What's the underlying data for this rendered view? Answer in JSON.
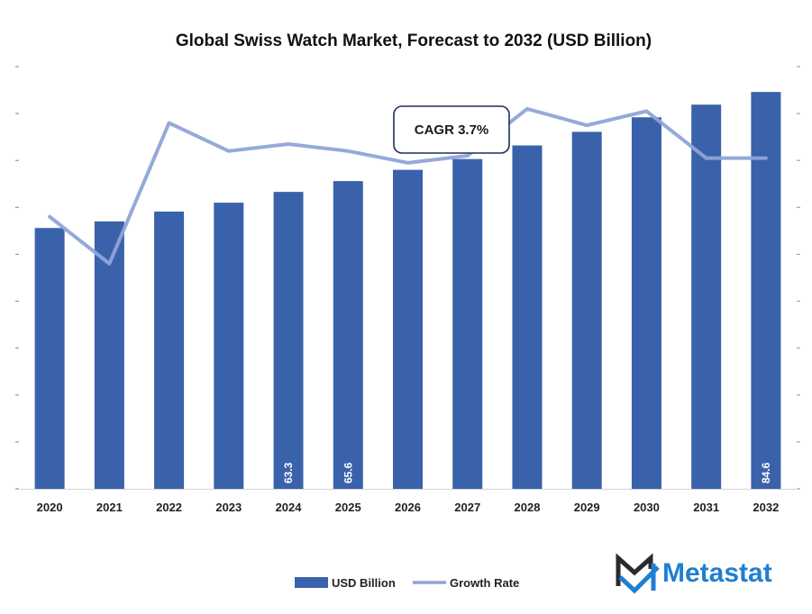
{
  "chart_data": {
    "type": "bar",
    "title": "Global Swiss Watch Market, Forecast to 2032 (USD Billion)",
    "xlabel": "",
    "ylabel": "",
    "categories": [
      "2020",
      "2021",
      "2022",
      "2023",
      "2024",
      "2025",
      "2026",
      "2027",
      "2028",
      "2029",
      "2030",
      "2031",
      "2032"
    ],
    "ylim": [
      0,
      90
    ],
    "yticks_step": 10,
    "ytick_labels_visible": false,
    "grid": false,
    "series": [
      {
        "name": "USD Billion",
        "type": "bar",
        "axis": "left",
        "color": "#3a62ab",
        "values": [
          55.6,
          57.0,
          59.1,
          61.0,
          63.3,
          65.6,
          68.0,
          70.3,
          73.2,
          76.1,
          79.2,
          81.9,
          84.6
        ],
        "data_labels": {
          "4": "63.3",
          "5": "65.6",
          "12": "84.6"
        }
      },
      {
        "name": "Growth Rate",
        "type": "line",
        "axis": "right",
        "color": "#8fa4d8",
        "unit": "relative (unlabeled secondary axis)",
        "ylim": [
          0,
          9
        ],
        "values": [
          5.8,
          4.8,
          7.8,
          7.2,
          7.35,
          7.2,
          6.95,
          7.1,
          8.1,
          7.75,
          8.05,
          7.05,
          7.05
        ]
      }
    ],
    "legend": {
      "position": "bottom",
      "entries": [
        {
          "label": "USD Billion",
          "kind": "bar"
        },
        {
          "label": "Growth Rate",
          "kind": "line"
        }
      ]
    },
    "annotations": [
      {
        "text": "CAGR 3.7%",
        "kind": "callout-box"
      }
    ]
  },
  "branding": {
    "logo_text": "Metastat",
    "logo_icon": "metastat-m-icon",
    "logo_color": "#1f7fd1",
    "logo_mark_dark": "#2b2b2b"
  }
}
